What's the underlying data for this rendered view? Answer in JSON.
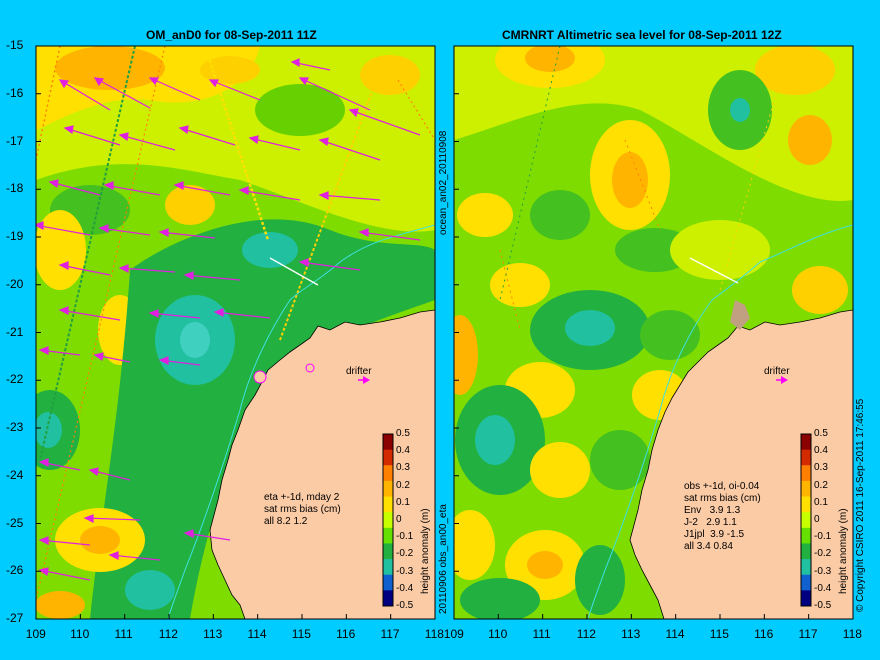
{
  "left_panel": {
    "title": "OM_anD0 for 08-Sep-2011 11Z",
    "side_label_top": "ocean_an02_20110908",
    "side_label_bottom": "20110906 obs_an00_eta",
    "stats": "eta +-1d, mday 2\nsat rms bias (cm)\nall 8.2 1.2",
    "drifter_label": "drifter"
  },
  "right_panel": {
    "title": "CMRNRT Altimetric sea level  for 08-Sep-2011 12Z",
    "stats": "obs +-1d, oi-0.04\nsat rms bias (cm)\nEnv   3.9 1.3\nJ-2   2.9 1.1\nJ1jpl  3.9 -1.5\nall 3.4 0.84",
    "drifter_label": "drifter",
    "copyright": "© Copyright CSIRO 2011   16-Sep-2011 17:46:55"
  },
  "lat_ticks": [
    "-15",
    "-16",
    "-17",
    "-18",
    "-19",
    "-20",
    "-21",
    "-22",
    "-23",
    "-24",
    "-25",
    "-26",
    "-27"
  ],
  "lon_ticks": [
    "109",
    "110",
    "111",
    "112",
    "113",
    "114",
    "115",
    "116",
    "117",
    "118"
  ],
  "colorbar": {
    "ticks": [
      "0.5",
      "0.4",
      "0.3",
      "0.2",
      "0.1",
      "0",
      "-0.1",
      "-0.2",
      "-0.3",
      "-0.4",
      "-0.5"
    ],
    "label": "height anomaly (m)",
    "colors": [
      "#8b0000",
      "#d42a00",
      "#ff7f00",
      "#ffb400",
      "#ffe000",
      "#c8ff00",
      "#66e000",
      "#22b040",
      "#20c0a0",
      "#1060d0",
      "#000080"
    ]
  },
  "colors": {
    "background": "#00ccff",
    "land": "#fbcba6",
    "vector": "#e020e0",
    "drifter": "#ff00ff"
  }
}
